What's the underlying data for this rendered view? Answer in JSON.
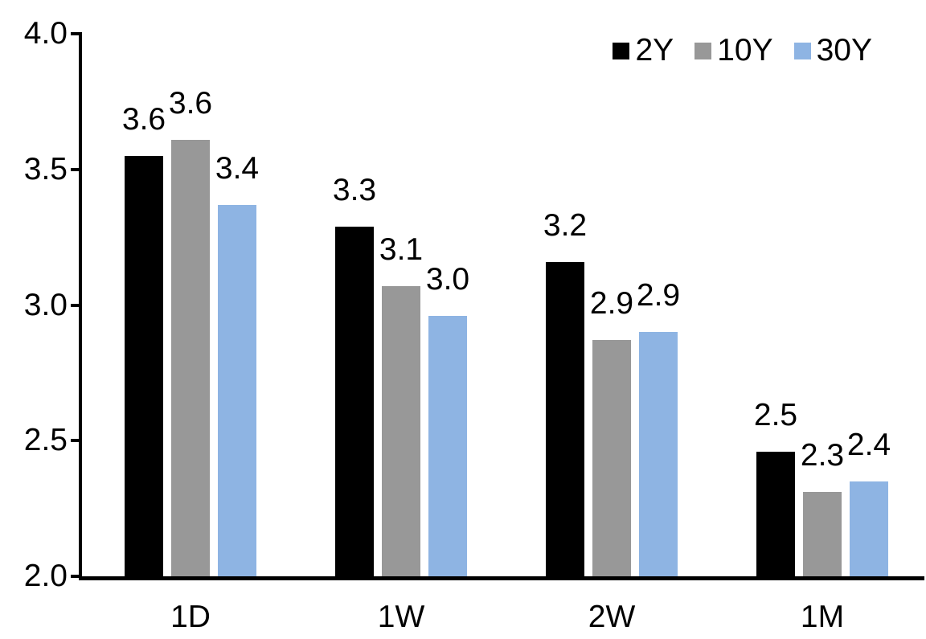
{
  "chart_data": {
    "type": "bar",
    "title": "",
    "xlabel": "",
    "ylabel": "",
    "categories": [
      "1D",
      "1W",
      "2W",
      "1M"
    ],
    "series": [
      {
        "name": "2Y",
        "color": "#000000",
        "values": [
          3.6,
          3.3,
          3.2,
          2.5
        ],
        "plot_values": [
          3.55,
          3.29,
          3.16,
          2.46
        ]
      },
      {
        "name": "10Y",
        "color": "#989898",
        "values": [
          3.6,
          3.1,
          2.9,
          2.3
        ],
        "plot_values": [
          3.61,
          3.07,
          2.87,
          2.31
        ]
      },
      {
        "name": "30Y",
        "color": "#8EB4E3",
        "values": [
          3.4,
          3.0,
          2.9,
          2.4
        ],
        "plot_values": [
          3.37,
          2.96,
          2.9,
          2.35
        ]
      }
    ],
    "ylim": [
      2.0,
      4.0
    ],
    "yticks": [
      2.0,
      2.5,
      3.0,
      3.5,
      4.0
    ],
    "ytick_format_decimals": 1,
    "data_label_format_decimals": 1,
    "grid": false,
    "legend_position": "top-right",
    "colors": {
      "axis": "#000000",
      "text": "#000000",
      "background": "#ffffff"
    }
  }
}
